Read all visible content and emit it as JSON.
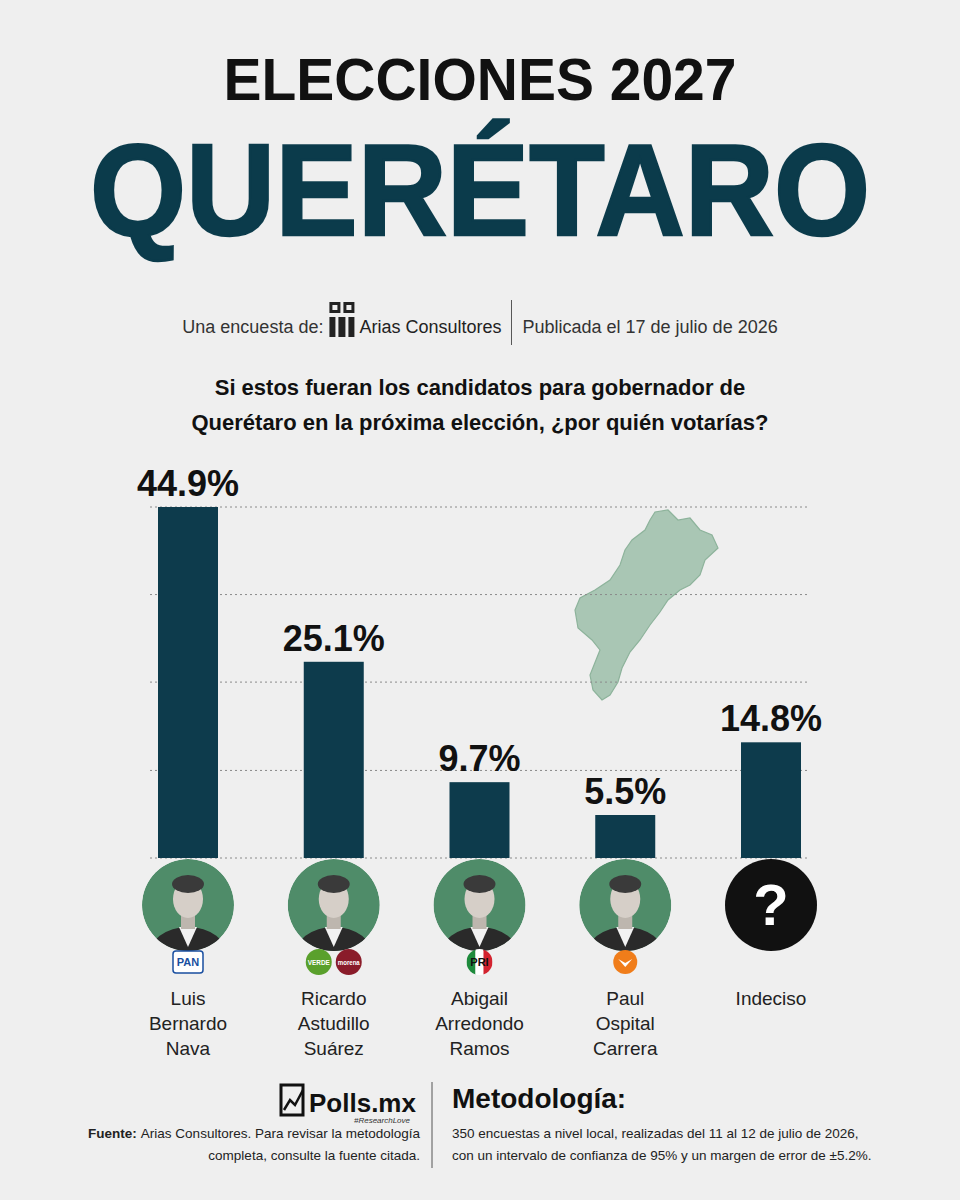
{
  "header": {
    "title": "ELECCIONES 2027",
    "state": "QUERÉTARO",
    "source_prefix": "Una encuesta de:",
    "pollster": "Arias Consultores",
    "published": "Publicada el 17 de julio de 2026"
  },
  "chart_data": {
    "type": "bar",
    "title": "Si estos fueran los candidatos para gobernador de Querétaro en la próxima elección, ¿por quién votarías?",
    "categories": [
      "Luis Bernardo Nava",
      "Ricardo Astudillo Suárez",
      "Abigail Arredondo Ramos",
      "Paul Ospital Carrera",
      "Indeciso"
    ],
    "values": [
      44.9,
      25.1,
      9.7,
      5.5,
      14.8
    ],
    "value_labels": [
      "44.9%",
      "25.1%",
      "9.7%",
      "5.5%",
      "14.8%"
    ],
    "color": "#0d3b4c",
    "ylim": [
      0,
      44.9
    ],
    "yticks": [
      0,
      11.2,
      22.5,
      33.7,
      44.9
    ],
    "grid": true,
    "data_labels": true,
    "tick_labels": false
  },
  "badges": [
    [
      "PAN"
    ],
    [
      "VERDE",
      "morena"
    ],
    [
      "PRI"
    ],
    [],
    []
  ],
  "undecided_mark": "?",
  "footer": {
    "brand": "Polls.mx",
    "tagline": "#ResearchLove",
    "source_label": "Fuente:",
    "source_text": "Arias Consultores. Para revisar la metodología completa, consulte la fuente citada.",
    "method_title": "Metodología:",
    "method_text": "350 encuestas a nivel local, realizadas del 11 al 12 de julio de 2026, con un intervalo de confianza de 95% y un margen de error de ±5.2%."
  }
}
